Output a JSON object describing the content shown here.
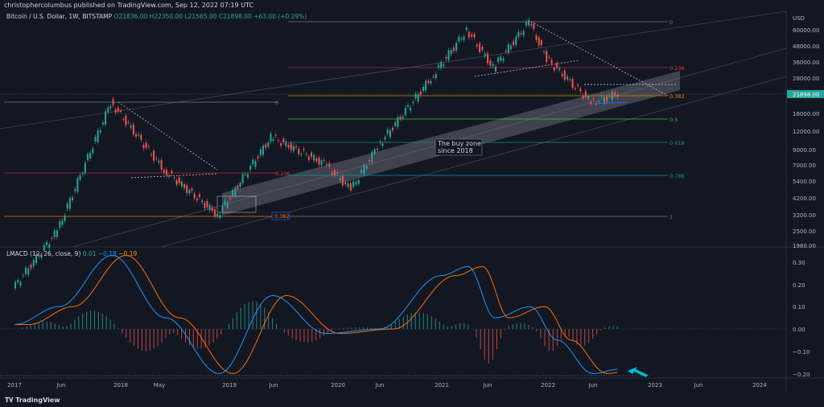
{
  "header": {
    "publisher_text": "christophercolumbus published on TradingView.com, Sep 12, 2022 07:19 UTC"
  },
  "legend": {
    "symbol": "Bitcoin / U.S. Dollar, 1W, BITSTAMP",
    "ohlc": "O21836.00  H22350.00  L21565.00  C21898.00  +63.00 (+0.29%)"
  },
  "indicator_legend": {
    "name": "LMACD (12, 26, close, 9)",
    "v1": "0.01",
    "v2": "−0.18",
    "v3": "−0.19"
  },
  "price_axis": {
    "currency": "USD",
    "ticks": [
      "60000.00",
      "48000.00",
      "36000.00",
      "28000.00",
      "21898.00",
      "16000.00",
      "12000.00",
      "9000.00",
      "7000.00",
      "5400.00",
      "4200.00",
      "3200.00",
      "2500.00",
      "1980.00"
    ],
    "current_price": "21898.00",
    "current_price_color": "#26a69a"
  },
  "macd_axis": {
    "ticks": [
      "0.30",
      "0.20",
      "0.10",
      "0.00",
      "−0.10",
      "−0.20"
    ]
  },
  "time_axis": {
    "ticks": [
      "2017",
      "Jun",
      "2018",
      "May",
      "2019",
      "Jun",
      "2020",
      "Jun",
      "2021",
      "Jun",
      "2022",
      "Jun",
      "2023",
      "Jun",
      "2024"
    ]
  },
  "fib_left": {
    "labels": [
      "0",
      "0.236",
      "0.382"
    ]
  },
  "fib_right": {
    "labels": [
      "0",
      "0.236",
      "0.382",
      "0.5",
      "0.618",
      "0.786",
      "1"
    ]
  },
  "annotation": {
    "line1": "The buy zone",
    "line2": "since 2018"
  },
  "footer": {
    "brand": "TradingView"
  },
  "colors": {
    "up": "#26a69a",
    "down": "#ef5350",
    "macd": "#2196f3",
    "signal": "#ff6d00",
    "zone": "#787b86"
  },
  "chart_data": {
    "type": "line",
    "series": [
      {
        "name": "Bitcoin / U.S. Dollar",
        "x": [
          "2017-01",
          "2017-06",
          "2017-12",
          "2018-06",
          "2018-12",
          "2019-06",
          "2019-12",
          "2020-03",
          "2020-06",
          "2020-12",
          "2021-04",
          "2021-07",
          "2021-11",
          "2022-01",
          "2022-06",
          "2022-09"
        ],
        "values": [
          1000,
          2500,
          19000,
          6500,
          3200,
          11000,
          7200,
          4800,
          9500,
          28000,
          60000,
          33000,
          68000,
          38000,
          19000,
          21898
        ]
      },
      {
        "name": "LMACD",
        "x": [
          "2017-01",
          "2017-06",
          "2017-12",
          "2018-06",
          "2018-12",
          "2019-06",
          "2019-12",
          "2020-06",
          "2021-01",
          "2021-04",
          "2021-07",
          "2021-11",
          "2022-02",
          "2022-06",
          "2022-09"
        ],
        "values": [
          0.02,
          0.1,
          0.33,
          0.05,
          -0.2,
          0.15,
          -0.02,
          0.0,
          0.24,
          0.28,
          0.05,
          0.1,
          -0.05,
          -0.2,
          -0.18
        ]
      }
    ],
    "ylim_price": [
      1980,
      60000
    ],
    "ylim_macd": [
      -0.2,
      0.3
    ],
    "y_scale": "log"
  }
}
